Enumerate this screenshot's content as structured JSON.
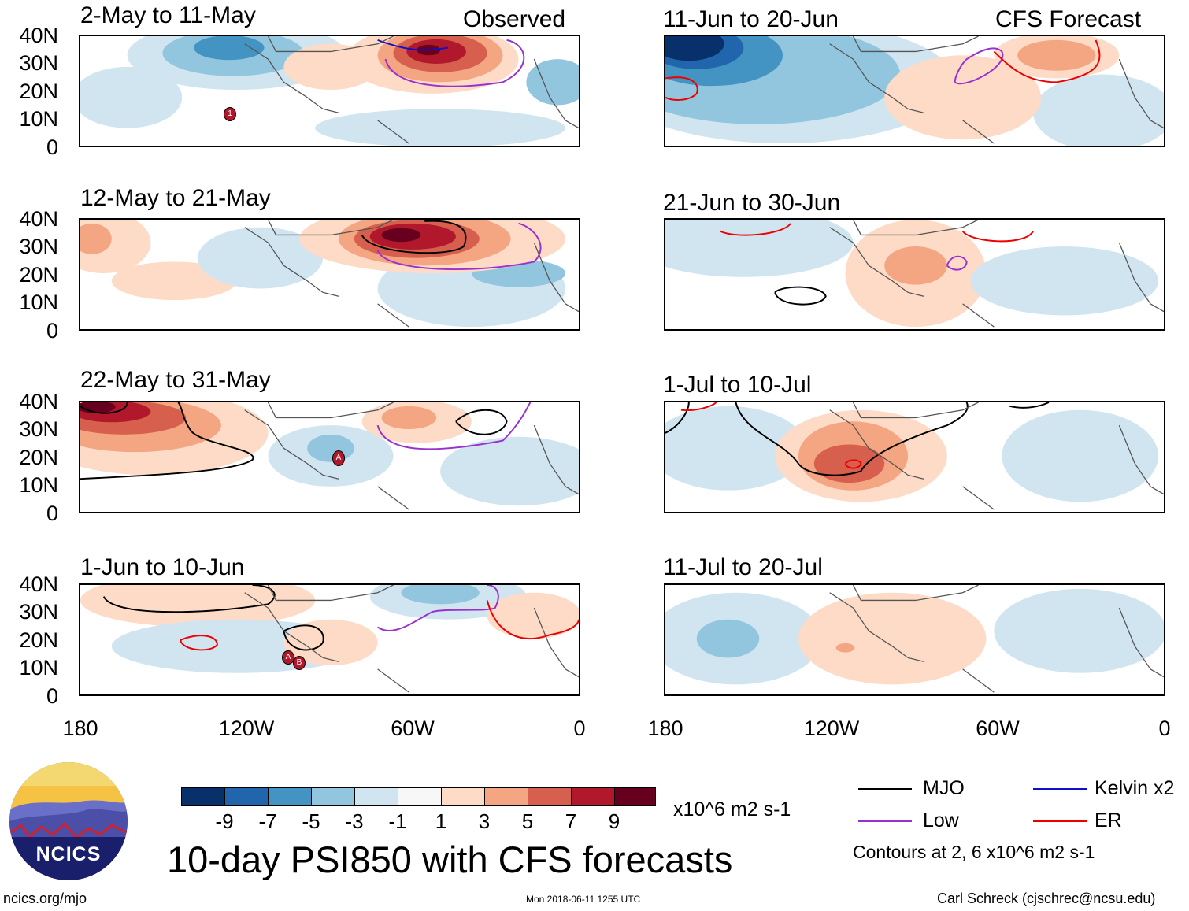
{
  "headers": {
    "left": "Observed",
    "right": "CFS Forecast"
  },
  "panels_left": [
    {
      "title": "2-May to 11-May"
    },
    {
      "title": "12-May to 21-May"
    },
    {
      "title": "22-May to 31-May"
    },
    {
      "title": "1-Jun to 10-Jun"
    }
  ],
  "panels_right": [
    {
      "title": "11-Jun to 20-Jun"
    },
    {
      "title": "21-Jun to 30-Jun"
    },
    {
      "title": "1-Jul to 10-Jul"
    },
    {
      "title": "11-Jul to 20-Jul"
    }
  ],
  "axes": {
    "lat_labels": [
      "40N",
      "30N",
      "20N",
      "10N",
      "0"
    ],
    "lon_labels": [
      "180",
      "120W",
      "60W",
      "0"
    ]
  },
  "storm_markers": {
    "p1": "1",
    "p3": "A",
    "p4a": "A",
    "p4b": "B"
  },
  "colorbar": {
    "ticks": [
      "-9",
      "-7",
      "-5",
      "-3",
      "-1",
      "1",
      "3",
      "5",
      "7",
      "9"
    ],
    "units": "x10^6 m2 s-1",
    "colors": [
      "#08306b",
      "#2166ac",
      "#4393c3",
      "#92c5de",
      "#d1e5f0",
      "#f7f7f7",
      "#fddbc7",
      "#f4a582",
      "#d6604d",
      "#b2182b",
      "#67001f"
    ]
  },
  "legend": {
    "mjo": "MJO",
    "kelvin": "Kelvin x2",
    "low": "Low",
    "er": "ER",
    "note": "Contours at 2, 6 x10^6 m2 s-1"
  },
  "main_title": "10-day PSI850 with CFS forecasts",
  "logo_text": "NCICS",
  "footer": {
    "url": "ncics.org/mjo",
    "timestamp": "Mon 2018-06-11 1255 UTC",
    "credit": "Carl Schreck (cjschrec@ncsu.edu)"
  }
}
